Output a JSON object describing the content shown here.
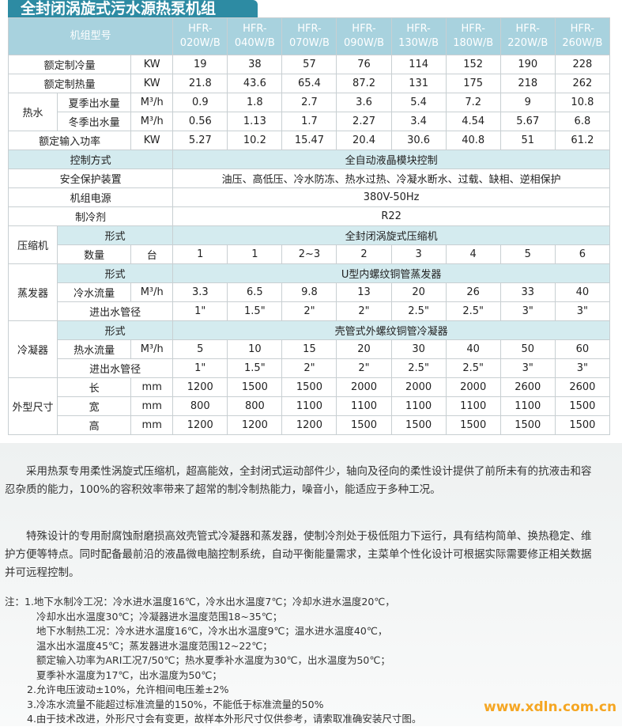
{
  "title": "全封闭涡旋式污水源热泵机组",
  "header": {
    "label": "机组型号",
    "models": [
      "HFR-\n020W/B",
      "HFR-\n040W/B",
      "HFR-\n070W/B",
      "HFR-\n090W/B",
      "HFR-\n130W/B",
      "HFR-\n180W/B",
      "HFR-\n220W/B",
      "HFR-\n260W/B"
    ]
  },
  "rows": {
    "cool": {
      "label": "额定制冷量",
      "unit": "KW",
      "values": [
        "19",
        "38",
        "57",
        "76",
        "114",
        "152",
        "190",
        "228"
      ]
    },
    "heat": {
      "label": "额定制热量",
      "unit": "KW",
      "values": [
        "21.8",
        "43.6",
        "65.4",
        "87.2",
        "131",
        "175",
        "218",
        "262"
      ]
    },
    "hotwater": {
      "group": "热水",
      "summer": {
        "label": "夏季出水量",
        "unit": "M³/h",
        "values": [
          "0.9",
          "1.8",
          "2.7",
          "3.6",
          "5.4",
          "7.2",
          "9",
          "10.8"
        ]
      },
      "winter": {
        "label": "冬季出水量",
        "unit": "M³/h",
        "values": [
          "0.56",
          "1.13",
          "1.7",
          "2.27",
          "3.4",
          "4.54",
          "5.67",
          "6.8"
        ]
      }
    },
    "power": {
      "label": "额定输入功率",
      "unit": "KW",
      "values": [
        "5.27",
        "10.2",
        "15.47",
        "20.4",
        "30.6",
        "40.8",
        "51",
        "61.2"
      ]
    },
    "control": {
      "label": "控制方式",
      "value": "全自动液晶模块控制"
    },
    "safety": {
      "label": "安全保护装置",
      "value": "油压、高低压、冷水防冻、热水过热、冷凝水断水、过载、缺相、逆相保护"
    },
    "supply": {
      "label": "机组电源",
      "value": "380V-50Hz"
    },
    "refrigerant": {
      "label": "制冷剂",
      "value": "R22"
    },
    "compressor": {
      "group": "压缩机",
      "type_label": "形式",
      "type": "全封闭涡旋式压缩机",
      "qty_label": "数量",
      "qty_unit": "台",
      "qty": [
        "1",
        "1",
        "2~3",
        "2",
        "3",
        "4",
        "5",
        "6"
      ]
    },
    "evaporator": {
      "group": "蒸发器",
      "type_label": "形式",
      "type": "U型内螺纹铜管蒸发器",
      "flow_label": "冷水流量",
      "flow_unit": "M³/h",
      "flow": [
        "3.3",
        "6.5",
        "9.8",
        "13",
        "20",
        "26",
        "33",
        "40"
      ],
      "pipe_label": "进出水管径",
      "pipe": [
        "1\"",
        "1.5\"",
        "2\"",
        "2\"",
        "2.5\"",
        "2.5\"",
        "3\"",
        "3\""
      ]
    },
    "condenser": {
      "group": "冷凝器",
      "type_label": "形式",
      "type": "壳管式外螺纹铜管冷凝器",
      "flow_label": "热水流量",
      "flow_unit": "M³/h",
      "flow": [
        "5",
        "10",
        "15",
        "20",
        "30",
        "40",
        "50",
        "60"
      ],
      "pipe_label": "进出水管径",
      "pipe": [
        "1\"",
        "1.5\"",
        "2\"",
        "2\"",
        "2.5\"",
        "2.5\"",
        "3\"",
        "3\""
      ]
    },
    "dims": {
      "group": "外型尺寸",
      "unit": "mm",
      "length_label": "长",
      "length": [
        "1200",
        "1500",
        "1500",
        "2000",
        "2000",
        "2000",
        "2600",
        "2600"
      ],
      "width_label": "宽",
      "width": [
        "800",
        "800",
        "1100",
        "1100",
        "1100",
        "1100",
        "1100",
        "1500"
      ],
      "height_label": "高",
      "height": [
        "1200",
        "1200",
        "1200",
        "1500",
        "1500",
        "1500",
        "1500",
        "1500"
      ]
    }
  },
  "paragraphs": [
    "采用热泵专用柔性涡旋式压缩机，超高能效，全封闭式运动部件少，轴向及径向的柔性设计提供了前所未有的抗液击和容忍杂质的能力，100%的容积效率带来了超常的制冷制热能力，噪音小，能适应于多种工况。",
    "特殊设计的专用耐腐蚀耐磨损高效壳管式冷凝器和蒸发器，使制冷剂处于极低阻力下运行，具有结构简单、换热稳定、维护方便等特点。同时配备最前沿的液晶微电脑控制系统，自动平衡能量需求，主菜单个性化设计可根据实际需要修正相关数据并可远程控制。"
  ],
  "notes": {
    "lead": "注：1.地下水制冷工况：冷水进水温度16℃，冷水出水温度7℃；冷却水进水温度20℃，",
    "lines1": [
      "冷却水出水温度30℃；冷凝器进水温度范围18~35℃；",
      "地下水制热工况：冷水进水温度16℃，冷水出水温度9℃；温水进水温度40℃，",
      "温水出水温度45℃；蒸发器进水温度范围12~22℃；",
      "额定输入功率为ARI工况7/50℃；热水夏季补水温度为30℃，出水温度为50℃；",
      "夏季补水温度为17℃，出水温度为50℃；"
    ],
    "items": [
      "2.允许电压波动±10%，允许相间电压差±2%",
      "3.冷冻水流量不能超过标准流量的150%，不能低于标准流量的50%",
      "4.由于技术改进，外形尺寸会有变更，故样本外形尺寸仅供参考，请索取准确安装尺寸图。"
    ]
  },
  "watermark": "www.xdln.com.cn"
}
